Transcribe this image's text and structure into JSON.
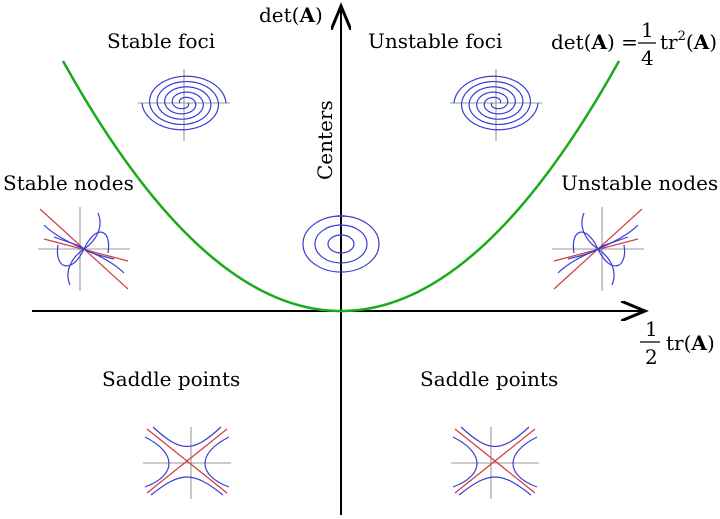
{
  "axes": {
    "y_label_prefix": "det(",
    "y_label_bold": "A",
    "y_label_suffix": ")",
    "x_label_frac_num": "1",
    "x_label_frac_den": "2",
    "x_label_prefix": "tr(",
    "x_label_bold": "A",
    "x_label_suffix": ")"
  },
  "curve": {
    "color": "#1aaa1a",
    "eq_lhs_prefix": "det(",
    "eq_lhs_bold": "A",
    "eq_lhs_suffix": ") =",
    "eq_frac_num": "1",
    "eq_frac_den": "4",
    "eq_rhs_prefix": "tr",
    "eq_rhs_sup": "2",
    "eq_rhs_open": "(",
    "eq_rhs_bold": "A",
    "eq_rhs_close": ")"
  },
  "regions": {
    "stable_foci": "Stable foci",
    "unstable_foci": "Unstable foci",
    "stable_nodes": "Stable nodes",
    "unstable_nodes": "Unstable nodes",
    "centers": "Centers",
    "saddle_left": "Saddle points",
    "saddle_right": "Saddle points"
  },
  "colors": {
    "trajectory": "#3c3cd2",
    "eigenvector": "#d23c3c",
    "axis": "#000000"
  }
}
